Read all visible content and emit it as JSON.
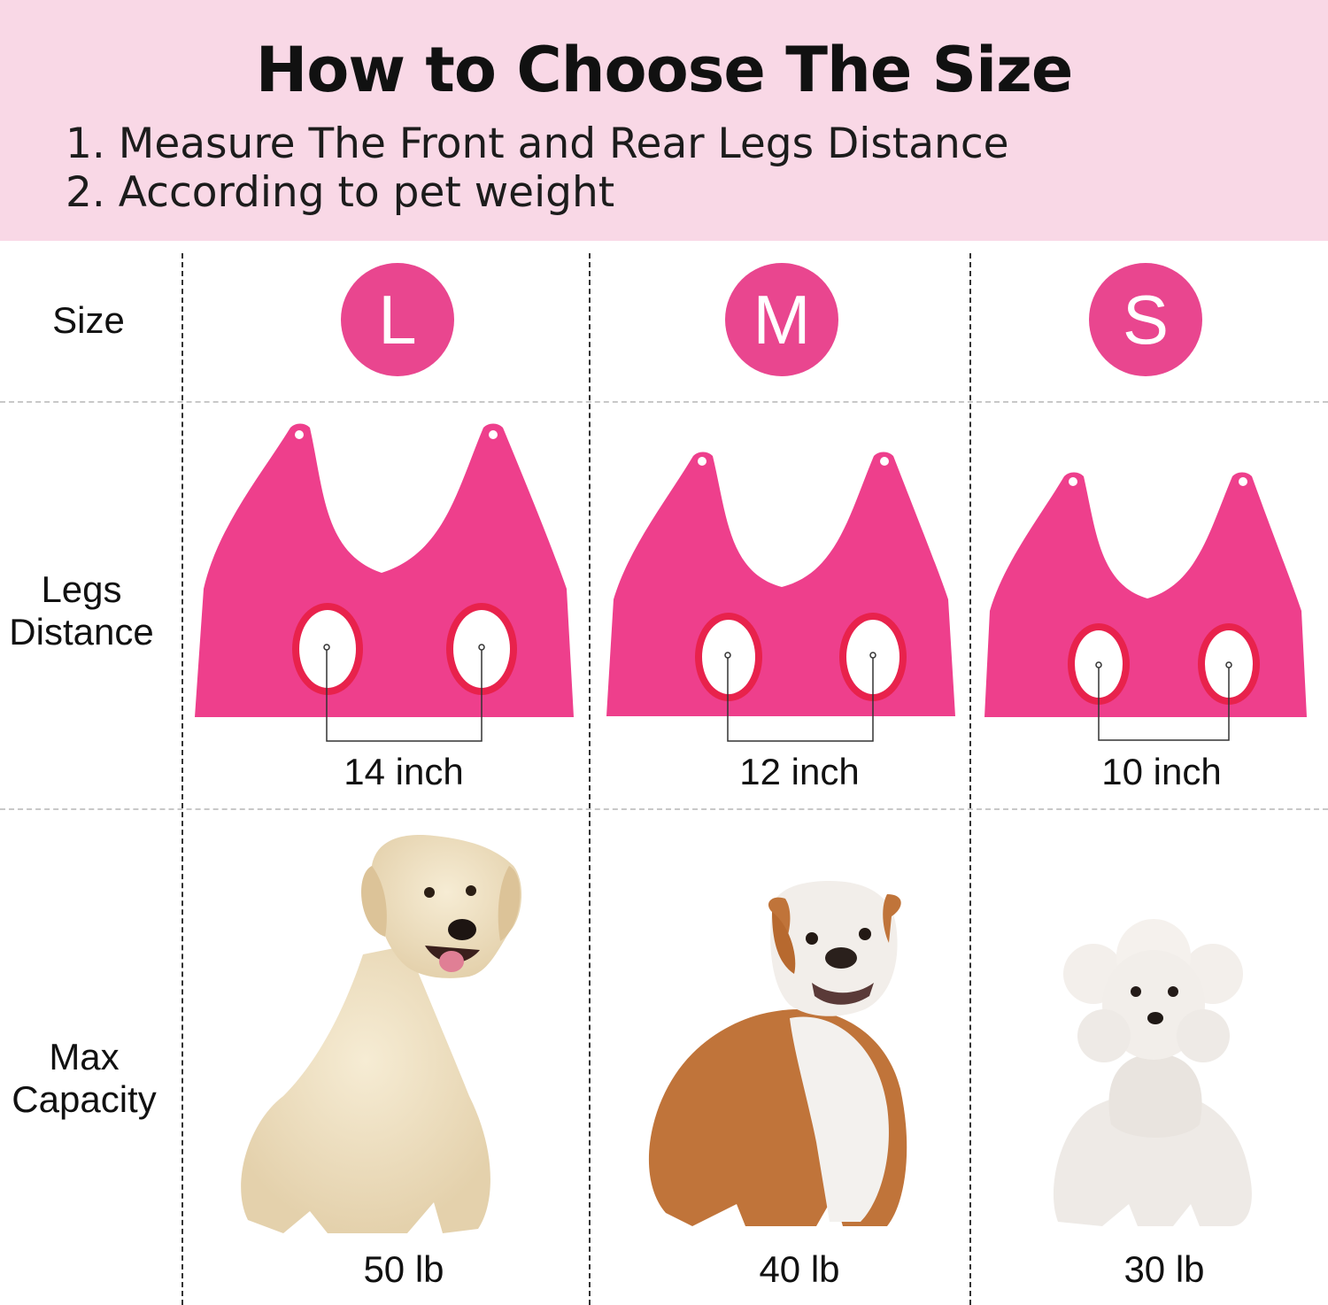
{
  "header": {
    "title": "How to Choose The Size",
    "steps": [
      "1. Measure The Front and Rear Legs Distance",
      "2. According to pet weight"
    ]
  },
  "table": {
    "row_labels": {
      "size": "Size",
      "legs_distance": [
        "Legs",
        "Distance"
      ],
      "max_capacity": [
        "Max",
        "Capacity"
      ]
    },
    "columns": [
      {
        "size": "L",
        "legs_distance": "14 inch",
        "max_capacity": "50 lb",
        "dog": "golden retriever"
      },
      {
        "size": "M",
        "legs_distance": "12 inch",
        "max_capacity": "40 lb",
        "dog": "bulldog"
      },
      {
        "size": "S",
        "legs_distance": "10 inch",
        "max_capacity": "30 lb",
        "dog": "poodle"
      }
    ]
  },
  "colors": {
    "header_bg": "#f9d8e6",
    "badge": "#e9468f",
    "hammock": "#ee3f8c",
    "hole_ring": "#e8224c"
  }
}
